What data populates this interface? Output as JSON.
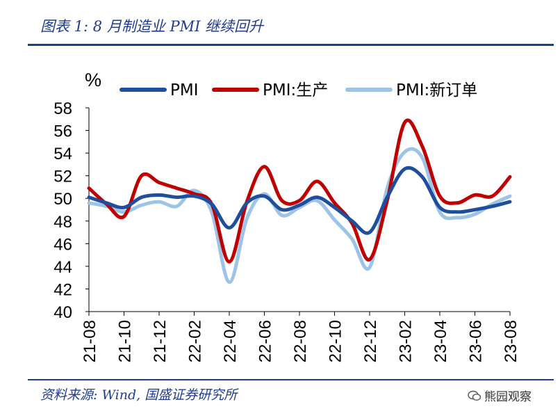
{
  "header": {
    "title": "图表 1:  8 月制造业 PMI 继续回升"
  },
  "footer": {
    "source": "资料来源:  Wind,  国盛证券研究所",
    "watermark": "熊园观察"
  },
  "chart_data": {
    "type": "line",
    "ylabel": "%",
    "ylim": [
      40,
      58
    ],
    "yticks": [
      40,
      42,
      44,
      46,
      48,
      50,
      52,
      54,
      56,
      58
    ],
    "categories": [
      "21-08",
      "21-09",
      "21-10",
      "21-11",
      "21-12",
      "22-01",
      "22-02",
      "22-03",
      "22-04",
      "22-05",
      "22-06",
      "22-07",
      "22-08",
      "22-09",
      "22-10",
      "22-11",
      "22-12",
      "23-01",
      "23-02",
      "23-03",
      "23-04",
      "23-05",
      "23-06",
      "23-07",
      "23-08"
    ],
    "tick_labels": [
      "21-08",
      "21-10",
      "21-12",
      "22-02",
      "22-04",
      "22-06",
      "22-08",
      "22-10",
      "22-12",
      "23-02",
      "23-04",
      "23-06",
      "23-08"
    ],
    "legend_position": "top",
    "series": [
      {
        "name": "PMI",
        "color": "#1f4e9c",
        "values": [
          50.1,
          49.6,
          49.2,
          50.1,
          50.3,
          50.1,
          50.2,
          49.5,
          47.4,
          49.6,
          50.2,
          49.0,
          49.4,
          50.1,
          49.2,
          48.0,
          47.0,
          50.1,
          52.6,
          51.9,
          49.2,
          48.8,
          49.0,
          49.3,
          49.7
        ]
      },
      {
        "name": "PMI:生产",
        "color": "#c00000",
        "values": [
          50.9,
          49.5,
          48.4,
          52.0,
          51.4,
          50.9,
          50.4,
          49.5,
          44.4,
          49.7,
          52.8,
          49.8,
          49.8,
          51.5,
          49.6,
          47.8,
          44.6,
          49.8,
          56.7,
          54.6,
          50.2,
          49.6,
          50.3,
          50.2,
          51.9
        ]
      },
      {
        "name": "PMI:新订单",
        "color": "#9dc3e6",
        "values": [
          49.6,
          49.3,
          48.8,
          49.4,
          49.7,
          49.3,
          50.7,
          48.8,
          42.6,
          48.2,
          50.4,
          48.5,
          49.2,
          49.8,
          48.1,
          46.4,
          43.9,
          50.9,
          54.1,
          53.6,
          48.8,
          48.3,
          48.6,
          49.5,
          50.2
        ]
      }
    ]
  }
}
